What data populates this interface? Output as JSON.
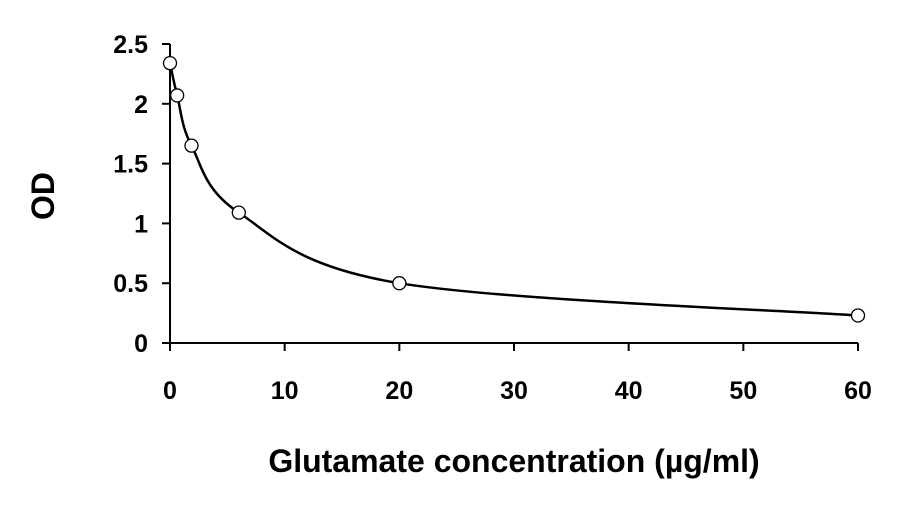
{
  "chart_data": {
    "type": "scatter",
    "title": "",
    "xlabel": "Glutamate concentration (µg/ml)",
    "ylabel": "OD",
    "xlim": [
      0,
      60
    ],
    "ylim": [
      0,
      2.5
    ],
    "x_ticks": [
      0,
      10,
      20,
      30,
      40,
      50,
      60
    ],
    "y_ticks": [
      0,
      0.5,
      1,
      1.5,
      2,
      2.5
    ],
    "x_tick_labels": [
      "0",
      "10",
      "20",
      "30",
      "40",
      "50",
      "60"
    ],
    "y_tick_labels": [
      "0",
      "0.5",
      "1",
      "1.5",
      "2",
      "2.5"
    ],
    "grid": false,
    "legend": "none",
    "fit_line": "smooth curve through points",
    "series": [
      {
        "x": [
          0,
          0.625,
          1.875,
          6,
          20,
          60
        ],
        "y": [
          2.34,
          2.07,
          1.65,
          1.09,
          0.5,
          0.23
        ]
      }
    ],
    "colors": {
      "line": "#000000",
      "marker_fill": "#ffffff",
      "marker_stroke": "#000000",
      "axis": "#000000"
    }
  }
}
